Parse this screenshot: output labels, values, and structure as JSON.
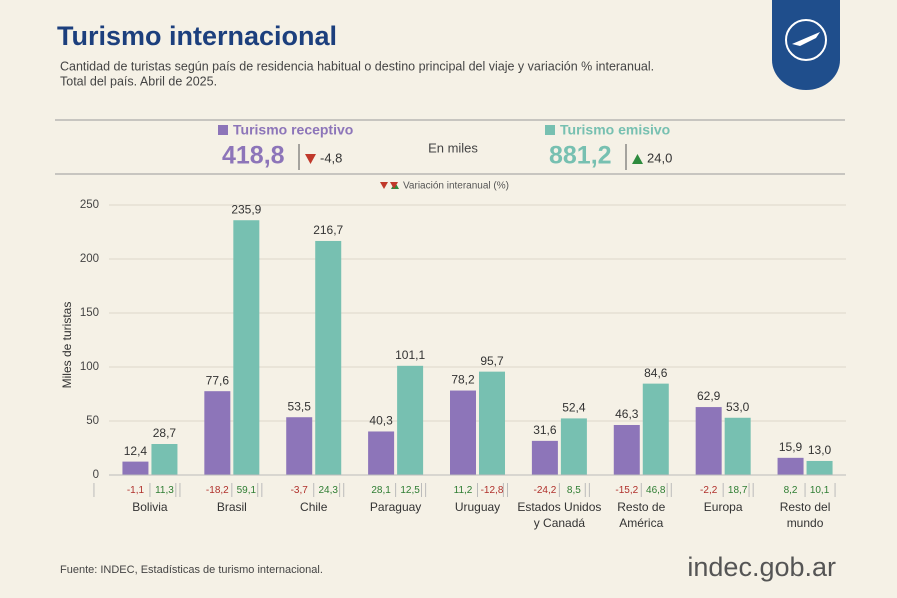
{
  "chart_data": {
    "type": "bar",
    "title": "Turismo internacional",
    "subtitle": [
      "Cantidad de turistas según país de residencia habitual o destino principal del viaje y variación % interanual.",
      "Total del país. Abril de 2025."
    ],
    "units_note": "En miles",
    "variation_title": "Variación interanual (%)",
    "ylabel": "Miles de turistas",
    "categories": [
      "Bolivia",
      "Brasil",
      "Chile",
      "Paraguay",
      "Uruguay",
      "Estados Unidos y Canadá",
      "Resto de América",
      "Europa",
      "Resto del mundo"
    ],
    "series": [
      {
        "name": "Turismo receptivo",
        "color": "#8d75b9",
        "total": 418.8,
        "total_label": "418,8",
        "change": -4.8,
        "change_label": "-4,8",
        "values": [
          12.4,
          77.6,
          53.5,
          40.3,
          78.2,
          31.6,
          46.3,
          62.9,
          15.9
        ],
        "value_labels": [
          "12,4",
          "77,6",
          "53,5",
          "40,3",
          "78,2",
          "31,6",
          "46,3",
          "62,9",
          "15,9"
        ],
        "variation": [
          -1.1,
          -18.2,
          -3.7,
          28.1,
          11.2,
          -24.2,
          -15.2,
          -2.2,
          8.2
        ],
        "variation_labels": [
          "-1,1",
          "-18,2",
          "-3,7",
          "28,1",
          "11,2",
          "-24,2",
          "-15,2",
          "-2,2",
          "8,2"
        ]
      },
      {
        "name": "Turismo emisivo",
        "color": "#77c0b1",
        "total": 881.2,
        "total_label": "881,2",
        "change": 24.0,
        "change_label": "24,0",
        "values": [
          28.7,
          235.9,
          216.7,
          101.1,
          95.7,
          52.4,
          84.6,
          53.0,
          13.0
        ],
        "value_labels": [
          "28,7",
          "235,9",
          "216,7",
          "101,1",
          "95,7",
          "52,4",
          "84,6",
          "53,0",
          "13,0"
        ],
        "variation": [
          11.3,
          59.1,
          24.3,
          12.5,
          -12.8,
          8.5,
          46.8,
          18.7,
          10.1
        ],
        "variation_labels": [
          "11,3",
          "59,1",
          "24,3",
          "12,5",
          "-12,8",
          "8,5",
          "46,8",
          "18,7",
          "10,1"
        ]
      }
    ],
    "ylim": [
      0,
      250
    ],
    "yticks": [
      0,
      50,
      100,
      150,
      200,
      250
    ],
    "grid": true,
    "source": "Fuente: INDEC, Estadísticas de turismo internacional.",
    "brand": "indec.gob.ar"
  }
}
